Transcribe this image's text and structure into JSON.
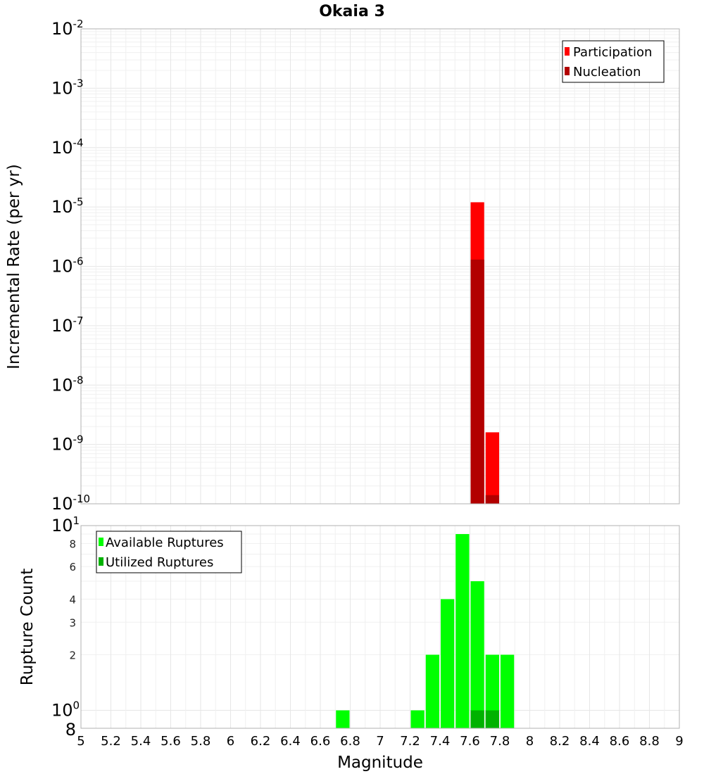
{
  "title": "Okaia 3",
  "xlabel": "Magnitude",
  "colors": {
    "participation": "#ff0000",
    "nucleation": "#b20000",
    "available": "#00ff00",
    "utilized": "#00b200"
  },
  "chart_data": [
    {
      "type": "bar",
      "panel": "top",
      "ylabel": "Incremental Rate (per yr)",
      "yscale": "log",
      "ylim": [
        1e-10,
        0.01
      ],
      "xlim": [
        5,
        9
      ],
      "grid": true,
      "legend_position": "top-right",
      "legend": [
        "Participation",
        "Nucleation"
      ],
      "bin_width": 0.1,
      "series": [
        {
          "name": "Participation",
          "x": [
            7.65,
            7.75
          ],
          "values": [
            1.2e-05,
            1.6e-09
          ]
        },
        {
          "name": "Nucleation",
          "x": [
            7.65,
            7.75
          ],
          "values": [
            1.3e-06,
            1.4e-10
          ]
        }
      ],
      "y_tick_exponents": [
        "-10",
        "-9",
        "-8",
        "-7",
        "-6",
        "-5",
        "-4",
        "-3",
        "-2"
      ]
    },
    {
      "type": "bar",
      "panel": "bottom",
      "ylabel": "Rupture Count",
      "yscale": "log",
      "ylim": [
        0.8,
        10
      ],
      "xlim": [
        5,
        9
      ],
      "grid": true,
      "legend_position": "top-left",
      "legend": [
        "Available Ruptures",
        "Utilized Ruptures"
      ],
      "bin_width": 0.1,
      "series": [
        {
          "name": "Available Ruptures",
          "x": [
            6.75,
            7.25,
            7.35,
            7.45,
            7.55,
            7.65,
            7.75,
            7.85
          ],
          "values": [
            1,
            1,
            2,
            4,
            9,
            5,
            2,
            2
          ]
        },
        {
          "name": "Utilized Ruptures",
          "x": [
            7.65,
            7.75
          ],
          "values": [
            1,
            1
          ]
        }
      ],
      "y_minor_ticks": [
        "2",
        "3",
        "4",
        "6",
        "8"
      ],
      "y_low_label": "8",
      "y_decade_ticks": [
        {
          "base": "10",
          "exp": "0"
        },
        {
          "base": "10",
          "exp": "1"
        }
      ]
    }
  ],
  "x_ticks": [
    "5",
    "5.2",
    "5.4",
    "5.6",
    "5.8",
    "6",
    "6.2",
    "6.4",
    "6.6",
    "6.8",
    "7",
    "7.2",
    "7.4",
    "7.6",
    "7.8",
    "8",
    "8.2",
    "8.4",
    "8.6",
    "8.8",
    "9"
  ]
}
